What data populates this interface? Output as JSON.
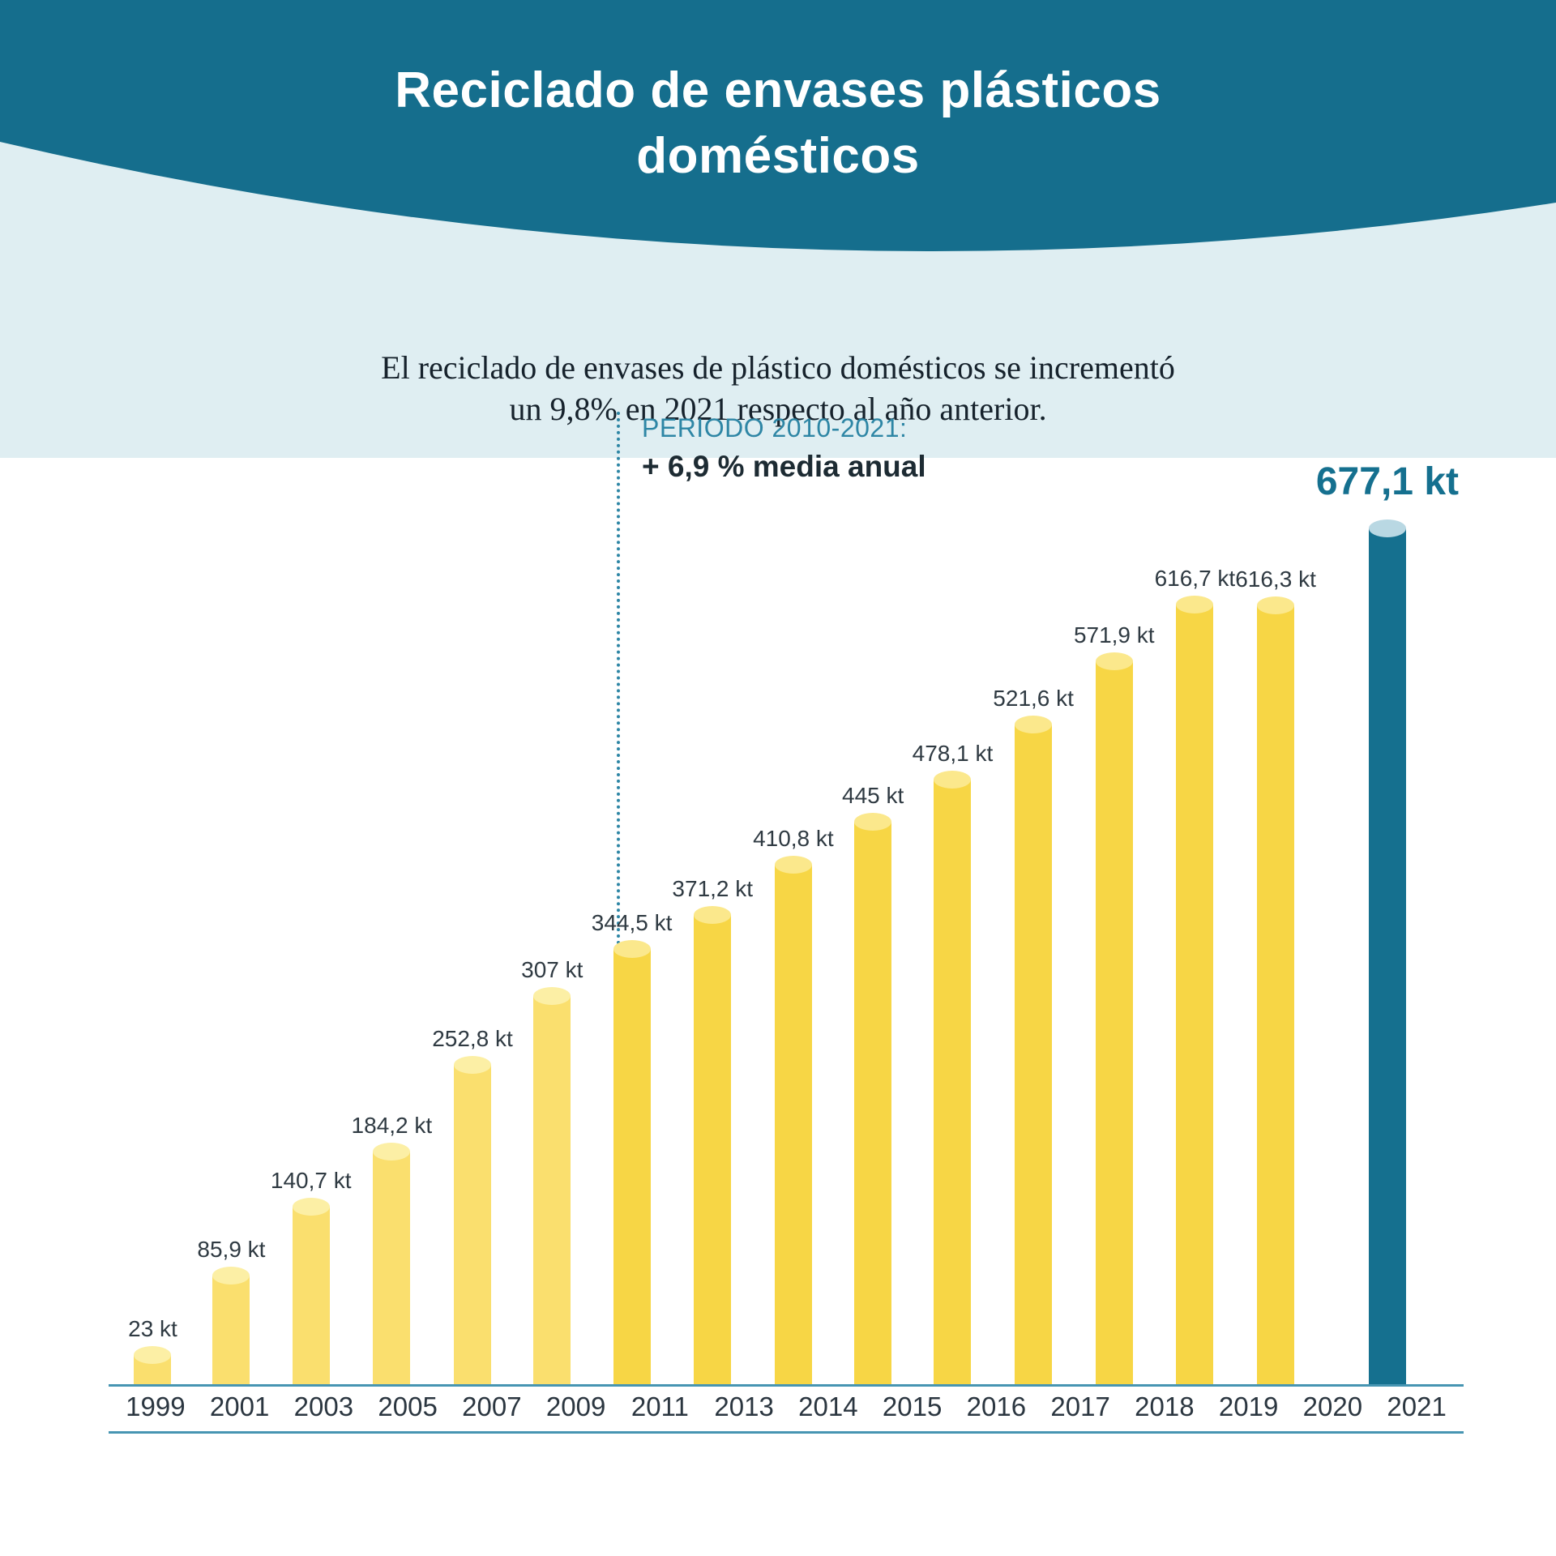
{
  "header": {
    "title_line1": "Reciclado de envases plásticos",
    "title_line2": "domésticos"
  },
  "intro": {
    "line1": "El reciclado de envases de plástico domésticos se incrementó",
    "line2": "un 9,8% en 2021 respecto al año anterior."
  },
  "annotation": {
    "period": "PERIODO 2010-2021:",
    "rate": "+ 6,9 % media anual"
  },
  "chart_data": {
    "type": "bar",
    "unit": "kt",
    "categories": [
      "1999",
      "2001",
      "2003",
      "2005",
      "2007",
      "2009",
      "2011",
      "2013",
      "2014",
      "2015",
      "2016",
      "2017",
      "2018",
      "2019",
      "2020",
      "2021"
    ],
    "values": [
      23,
      85.9,
      140.7,
      184.2,
      252.8,
      307,
      344.5,
      371.2,
      410.8,
      445,
      478.1,
      521.6,
      571.9,
      616.7,
      616.3,
      677.1
    ],
    "value_labels": [
      "23 kt",
      "85,9 kt",
      "140,7 kt",
      "184,2 kt",
      "252,8 kt",
      "307 kt",
      "344,5 kt",
      "371,2 kt",
      "410,8 kt",
      "445 kt",
      "478,1 kt",
      "521,6 kt",
      "571,9 kt",
      "616,7 kt",
      "616,3 kt",
      "677,1 kt"
    ],
    "highlight_index": 15,
    "highlight_label": "677,1 kt",
    "group_split_index": 6,
    "ylim": [
      0,
      700
    ],
    "xlabel": "",
    "ylabel": "",
    "grid": false,
    "legend": false,
    "colors": {
      "header_teal": "#156E8D",
      "bg_light": "#DFEEF2",
      "bar_early": "#FADF6E",
      "bar_early_cap": "#FCEFA5",
      "bar_mid": "#F7D645",
      "bar_mid_cap": "#FBE88C",
      "bar_highlight": "#15708F",
      "bar_highlight_cap": "#B9D8E3",
      "axis": "#4795B2",
      "annotation_teal": "#2E86A5"
    }
  }
}
